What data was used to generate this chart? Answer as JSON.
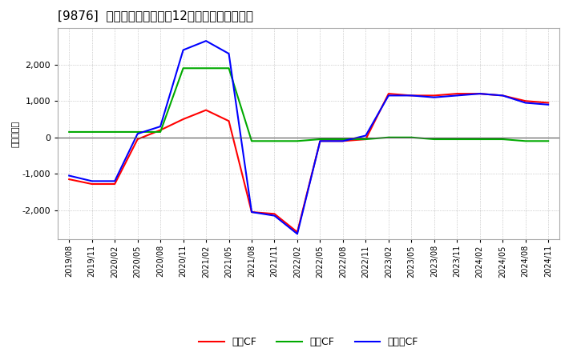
{
  "title": "[9876]  キャッシュフローの12か月移動合計の推移",
  "ylabel": "（百万円）",
  "background_color": "#ffffff",
  "plot_bg_color": "#ffffff",
  "grid_color": "#aaaaaa",
  "x_labels": [
    "2019/08",
    "2019/11",
    "2020/02",
    "2020/05",
    "2020/08",
    "2020/11",
    "2021/02",
    "2021/05",
    "2021/08",
    "2021/11",
    "2022/02",
    "2022/05",
    "2022/08",
    "2022/11",
    "2023/02",
    "2023/05",
    "2023/08",
    "2023/11",
    "2024/02",
    "2024/05",
    "2024/08",
    "2024/11"
  ],
  "operating_cf": [
    -1150,
    -1280,
    -1280,
    -50,
    200,
    500,
    750,
    450,
    -2050,
    -2100,
    -2600,
    -100,
    -100,
    -50,
    1200,
    1150,
    1150,
    1200,
    1200,
    1150,
    1000,
    950
  ],
  "investing_cf": [
    150,
    150,
    150,
    150,
    150,
    1900,
    1900,
    1900,
    -100,
    -100,
    -100,
    -50,
    -50,
    -50,
    0,
    0,
    -50,
    -50,
    -50,
    -50,
    -100,
    -100
  ],
  "free_cf": [
    -1050,
    -1200,
    -1200,
    100,
    300,
    2400,
    2650,
    2300,
    -2050,
    -2150,
    -2650,
    -100,
    -100,
    50,
    1150,
    1150,
    1100,
    1150,
    1200,
    1150,
    950,
    900
  ],
  "operating_color": "#ff0000",
  "investing_color": "#00aa00",
  "free_color": "#0000ff",
  "ylim": [
    -2800,
    3000
  ],
  "yticks": [
    -2000,
    -1000,
    0,
    1000,
    2000
  ],
  "title_fontsize": 11,
  "legend_labels": [
    "営業CF",
    "投賃CF",
    "フリーCF"
  ]
}
